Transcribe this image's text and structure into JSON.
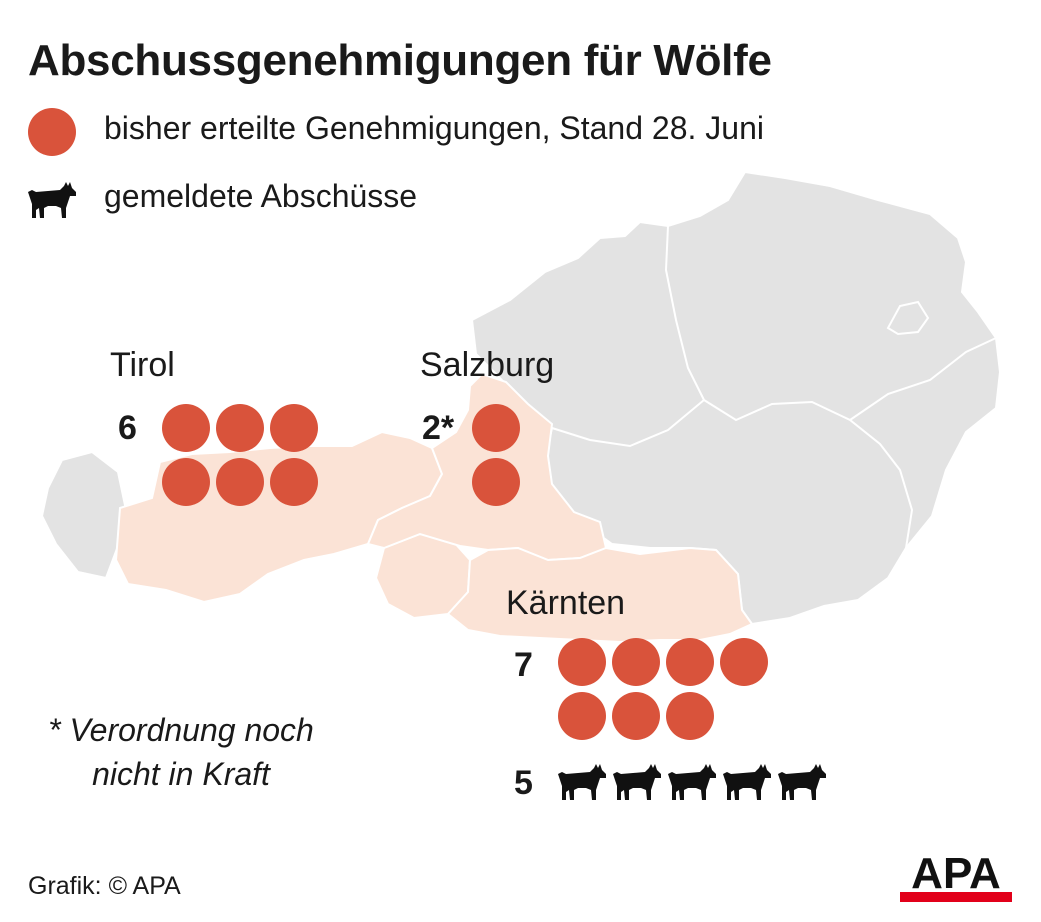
{
  "title": "Abschussgenehmigungen für Wölfe",
  "legend": {
    "permits_label": "bisher erteilte Genehmigungen, Stand 28. Juni",
    "permits_icon": "red-circle-icon",
    "shots_label": "gemeldete Abschüsse",
    "shots_icon": "wolf-icon"
  },
  "colors": {
    "permit_dot": "#d9533b",
    "highlighted_region": "#fbe3d6",
    "other_region": "#e3e3e3",
    "border": "#ffffff",
    "wolf": "#111111",
    "apa_logo_bar": "#e2001a"
  },
  "regions": [
    {
      "name": "Tirol",
      "count_label": "6",
      "permits": 6,
      "wolves_shot": null
    },
    {
      "name": "Salzburg",
      "count_label": "2*",
      "permits": 2,
      "wolves_shot": null
    },
    {
      "name": "Kärnten",
      "count_label": "7",
      "permits": 7,
      "wolves_shot": 5,
      "wolves_label": "5"
    }
  ],
  "footnote": "* Verordnung noch nicht in Kraft",
  "source": "Grafik: © APA",
  "logo": "APA"
}
